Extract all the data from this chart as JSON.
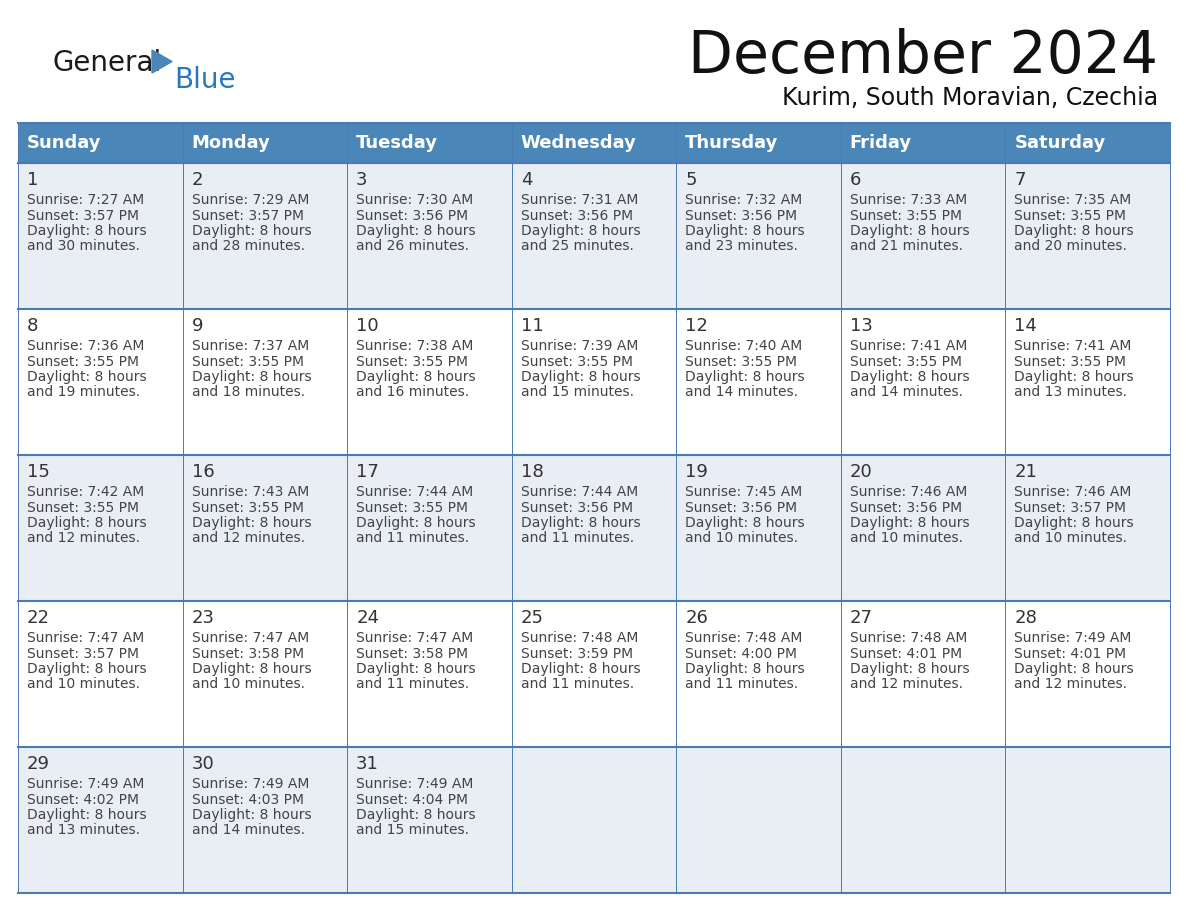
{
  "title": "December 2024",
  "subtitle": "Kurim, South Moravian, Czechia",
  "days_of_week": [
    "Sunday",
    "Monday",
    "Tuesday",
    "Wednesday",
    "Thursday",
    "Friday",
    "Saturday"
  ],
  "header_bg_color": "#4a86b8",
  "header_text_color": "#ffffff",
  "row_bg_even": "#e8eef4",
  "row_bg_odd": "#ffffff",
  "border_color": "#4a7ab5",
  "day_number_color": "#333333",
  "cell_text_color": "#444444",
  "logo_general_color": "#1a1a1a",
  "logo_blue_color": "#2878be",
  "logo_triangle_color": "#4a86b8",
  "title_color": "#111111",
  "calendar_data": [
    [
      {
        "day": 1,
        "sunrise": "7:27 AM",
        "sunset": "3:57 PM",
        "daylight_h": "8 hours",
        "daylight_m": "and 30 minutes."
      },
      {
        "day": 2,
        "sunrise": "7:29 AM",
        "sunset": "3:57 PM",
        "daylight_h": "8 hours",
        "daylight_m": "and 28 minutes."
      },
      {
        "day": 3,
        "sunrise": "7:30 AM",
        "sunset": "3:56 PM",
        "daylight_h": "8 hours",
        "daylight_m": "and 26 minutes."
      },
      {
        "day": 4,
        "sunrise": "7:31 AM",
        "sunset": "3:56 PM",
        "daylight_h": "8 hours",
        "daylight_m": "and 25 minutes."
      },
      {
        "day": 5,
        "sunrise": "7:32 AM",
        "sunset": "3:56 PM",
        "daylight_h": "8 hours",
        "daylight_m": "and 23 minutes."
      },
      {
        "day": 6,
        "sunrise": "7:33 AM",
        "sunset": "3:55 PM",
        "daylight_h": "8 hours",
        "daylight_m": "and 21 minutes."
      },
      {
        "day": 7,
        "sunrise": "7:35 AM",
        "sunset": "3:55 PM",
        "daylight_h": "8 hours",
        "daylight_m": "and 20 minutes."
      }
    ],
    [
      {
        "day": 8,
        "sunrise": "7:36 AM",
        "sunset": "3:55 PM",
        "daylight_h": "8 hours",
        "daylight_m": "and 19 minutes."
      },
      {
        "day": 9,
        "sunrise": "7:37 AM",
        "sunset": "3:55 PM",
        "daylight_h": "8 hours",
        "daylight_m": "and 18 minutes."
      },
      {
        "day": 10,
        "sunrise": "7:38 AM",
        "sunset": "3:55 PM",
        "daylight_h": "8 hours",
        "daylight_m": "and 16 minutes."
      },
      {
        "day": 11,
        "sunrise": "7:39 AM",
        "sunset": "3:55 PM",
        "daylight_h": "8 hours",
        "daylight_m": "and 15 minutes."
      },
      {
        "day": 12,
        "sunrise": "7:40 AM",
        "sunset": "3:55 PM",
        "daylight_h": "8 hours",
        "daylight_m": "and 14 minutes."
      },
      {
        "day": 13,
        "sunrise": "7:41 AM",
        "sunset": "3:55 PM",
        "daylight_h": "8 hours",
        "daylight_m": "and 14 minutes."
      },
      {
        "day": 14,
        "sunrise": "7:41 AM",
        "sunset": "3:55 PM",
        "daylight_h": "8 hours",
        "daylight_m": "and 13 minutes."
      }
    ],
    [
      {
        "day": 15,
        "sunrise": "7:42 AM",
        "sunset": "3:55 PM",
        "daylight_h": "8 hours",
        "daylight_m": "and 12 minutes."
      },
      {
        "day": 16,
        "sunrise": "7:43 AM",
        "sunset": "3:55 PM",
        "daylight_h": "8 hours",
        "daylight_m": "and 12 minutes."
      },
      {
        "day": 17,
        "sunrise": "7:44 AM",
        "sunset": "3:55 PM",
        "daylight_h": "8 hours",
        "daylight_m": "and 11 minutes."
      },
      {
        "day": 18,
        "sunrise": "7:44 AM",
        "sunset": "3:56 PM",
        "daylight_h": "8 hours",
        "daylight_m": "and 11 minutes."
      },
      {
        "day": 19,
        "sunrise": "7:45 AM",
        "sunset": "3:56 PM",
        "daylight_h": "8 hours",
        "daylight_m": "and 10 minutes."
      },
      {
        "day": 20,
        "sunrise": "7:46 AM",
        "sunset": "3:56 PM",
        "daylight_h": "8 hours",
        "daylight_m": "and 10 minutes."
      },
      {
        "day": 21,
        "sunrise": "7:46 AM",
        "sunset": "3:57 PM",
        "daylight_h": "8 hours",
        "daylight_m": "and 10 minutes."
      }
    ],
    [
      {
        "day": 22,
        "sunrise": "7:47 AM",
        "sunset": "3:57 PM",
        "daylight_h": "8 hours",
        "daylight_m": "and 10 minutes."
      },
      {
        "day": 23,
        "sunrise": "7:47 AM",
        "sunset": "3:58 PM",
        "daylight_h": "8 hours",
        "daylight_m": "and 10 minutes."
      },
      {
        "day": 24,
        "sunrise": "7:47 AM",
        "sunset": "3:58 PM",
        "daylight_h": "8 hours",
        "daylight_m": "and 11 minutes."
      },
      {
        "day": 25,
        "sunrise": "7:48 AM",
        "sunset": "3:59 PM",
        "daylight_h": "8 hours",
        "daylight_m": "and 11 minutes."
      },
      {
        "day": 26,
        "sunrise": "7:48 AM",
        "sunset": "4:00 PM",
        "daylight_h": "8 hours",
        "daylight_m": "and 11 minutes."
      },
      {
        "day": 27,
        "sunrise": "7:48 AM",
        "sunset": "4:01 PM",
        "daylight_h": "8 hours",
        "daylight_m": "and 12 minutes."
      },
      {
        "day": 28,
        "sunrise": "7:49 AM",
        "sunset": "4:01 PM",
        "daylight_h": "8 hours",
        "daylight_m": "and 12 minutes."
      }
    ],
    [
      {
        "day": 29,
        "sunrise": "7:49 AM",
        "sunset": "4:02 PM",
        "daylight_h": "8 hours",
        "daylight_m": "and 13 minutes."
      },
      {
        "day": 30,
        "sunrise": "7:49 AM",
        "sunset": "4:03 PM",
        "daylight_h": "8 hours",
        "daylight_m": "and 14 minutes."
      },
      {
        "day": 31,
        "sunrise": "7:49 AM",
        "sunset": "4:04 PM",
        "daylight_h": "8 hours",
        "daylight_m": "and 15 minutes."
      },
      null,
      null,
      null,
      null
    ]
  ]
}
